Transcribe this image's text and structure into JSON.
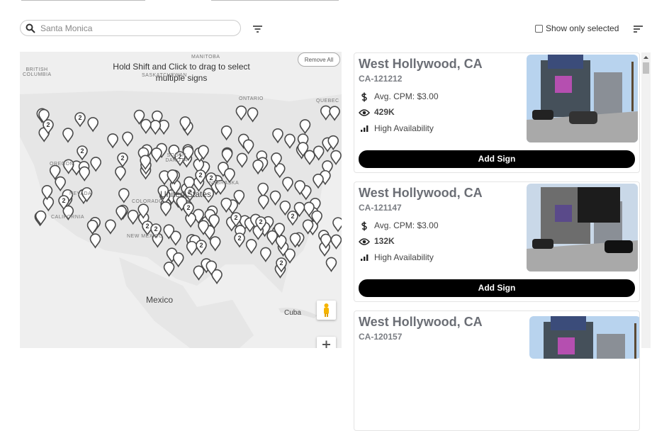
{
  "search": {
    "placeholder": "Santa Monica"
  },
  "filter": {
    "show_only_selected": "Show only selected"
  },
  "map": {
    "hint": "Hold Shift and Click to drag to select multiple signs",
    "remove_all": "Remove All",
    "labels": [
      "MANITOBA",
      "SASKATCHEWAN",
      "BRITISH COLUMBIA",
      "ONTARIO",
      "QUEBEC",
      "SOUTH DAKOTA",
      "OREGON",
      "NEVADA",
      "CALIFORNIA",
      "COLORADO",
      "NEBRASKA",
      "United States",
      "NEW MEXICO",
      "Mexico",
      "Cuba"
    ],
    "clusters": [
      "2",
      "2",
      "2",
      "2",
      "2",
      "2",
      "2",
      "2",
      "2",
      "2",
      "2",
      "2",
      "2",
      "2",
      "2",
      "2",
      "2",
      "2"
    ]
  },
  "listings": [
    {
      "title": "West Hollywood, CA",
      "id": "CA-121212",
      "cpm": "Avg. CPM: $3.00",
      "impressions": "429K",
      "availability": "High Availability",
      "button": "Add Sign"
    },
    {
      "title": "West Hollywood, CA",
      "id": "CA-121147",
      "cpm": "Avg. CPM: $3.00",
      "impressions": "132K",
      "availability": "High Availability",
      "button": "Add Sign"
    },
    {
      "title": "West Hollywood, CA",
      "id": "CA-120157"
    }
  ]
}
